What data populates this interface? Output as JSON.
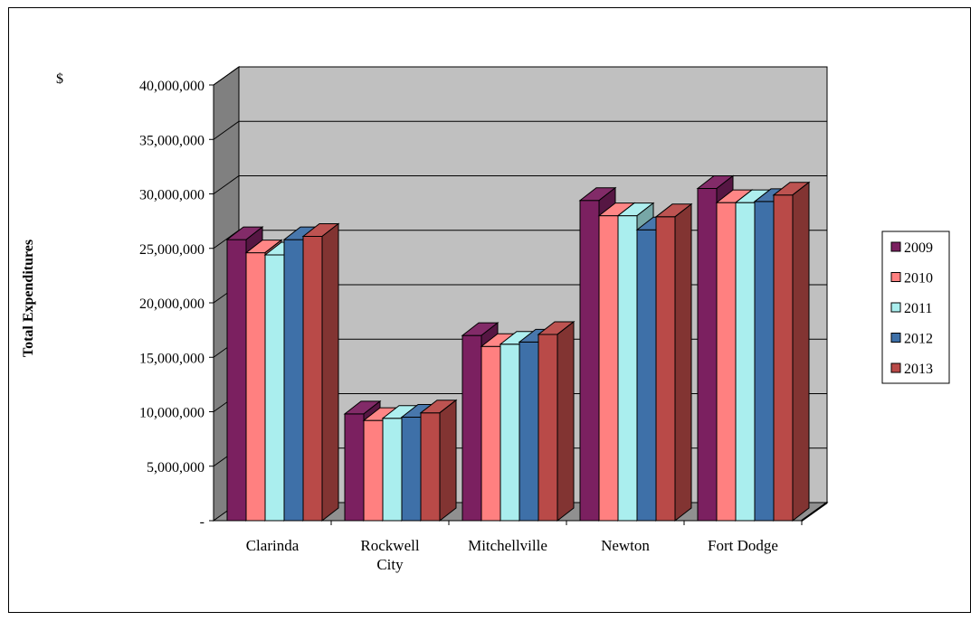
{
  "chart_data": {
    "type": "bar",
    "title": "",
    "unit_label": "$",
    "ylabel": "Total Expenditures",
    "xlabel": "",
    "ylim": [
      0,
      40000000
    ],
    "ytick_step": 5000000,
    "ytick_labels": [
      "-",
      "5,000,000",
      "10,000,000",
      "15,000,000",
      "20,000,000",
      "25,000,000",
      "30,000,000",
      "35,000,000",
      "40,000,000"
    ],
    "categories": [
      [
        "Clarinda"
      ],
      [
        "Rockwell",
        "City"
      ],
      [
        "Mitchellville"
      ],
      [
        "Newton"
      ],
      [
        "Fort Dodge"
      ]
    ],
    "series": [
      {
        "name": "2009",
        "color": "#7B2060",
        "values": [
          25800000,
          9800000,
          17000000,
          29400000,
          30500000
        ]
      },
      {
        "name": "2010",
        "color": "#FF8080",
        "values": [
          24600000,
          9200000,
          16000000,
          28000000,
          29200000
        ]
      },
      {
        "name": "2011",
        "color": "#AAEEEE",
        "values": [
          24400000,
          9400000,
          16200000,
          28000000,
          29200000
        ]
      },
      {
        "name": "2012",
        "color": "#3E70A8",
        "values": [
          25800000,
          9500000,
          16400000,
          26700000,
          29300000
        ]
      },
      {
        "name": "2013",
        "color": "#B94A48",
        "values": [
          26100000,
          9900000,
          17100000,
          27900000,
          29900000
        ]
      }
    ],
    "grid": true,
    "legend_position": "right",
    "style": "3d-clustered-column"
  }
}
